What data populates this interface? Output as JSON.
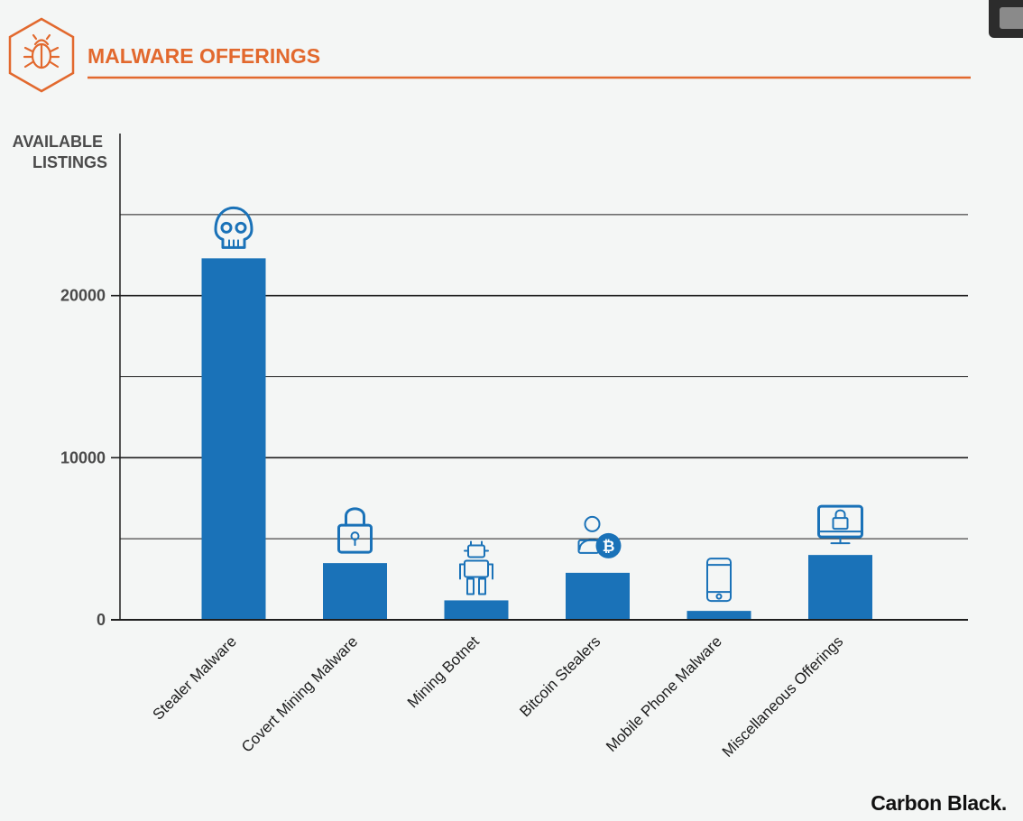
{
  "header": {
    "title": "MALWARE OFFERINGS",
    "title_color": "#e2692e",
    "logo_icon": "bug-icon"
  },
  "brand": {
    "name": "Carbon Black."
  },
  "chart_data": {
    "type": "bar",
    "title": "MALWARE OFFERINGS",
    "xlabel": "",
    "ylabel": "AVAILABLE LISTINGS",
    "ylabel_lines": [
      "AVAILABLE",
      "LISTINGS"
    ],
    "categories": [
      "Stealer Malware",
      "Covert Mining Malware",
      "Mining Botnet",
      "Bitcoin Stealers",
      "Mobile Phone Malware",
      "Miscellaneous Offerings"
    ],
    "values": [
      22300,
      3500,
      1200,
      2900,
      550,
      4000
    ],
    "icons": [
      "skull-icon",
      "padlock-icon",
      "robot-icon",
      "bitcoin-person-icon",
      "smartphone-icon",
      "monitor-lock-icon"
    ],
    "ylim": [
      0,
      30000
    ],
    "yticks": [
      0,
      10000,
      20000
    ],
    "gridlines": [
      5000,
      10000,
      15000,
      20000,
      25000
    ],
    "grid": true,
    "bar_color": "#1a72b8",
    "accent_color": "#e2692e"
  }
}
